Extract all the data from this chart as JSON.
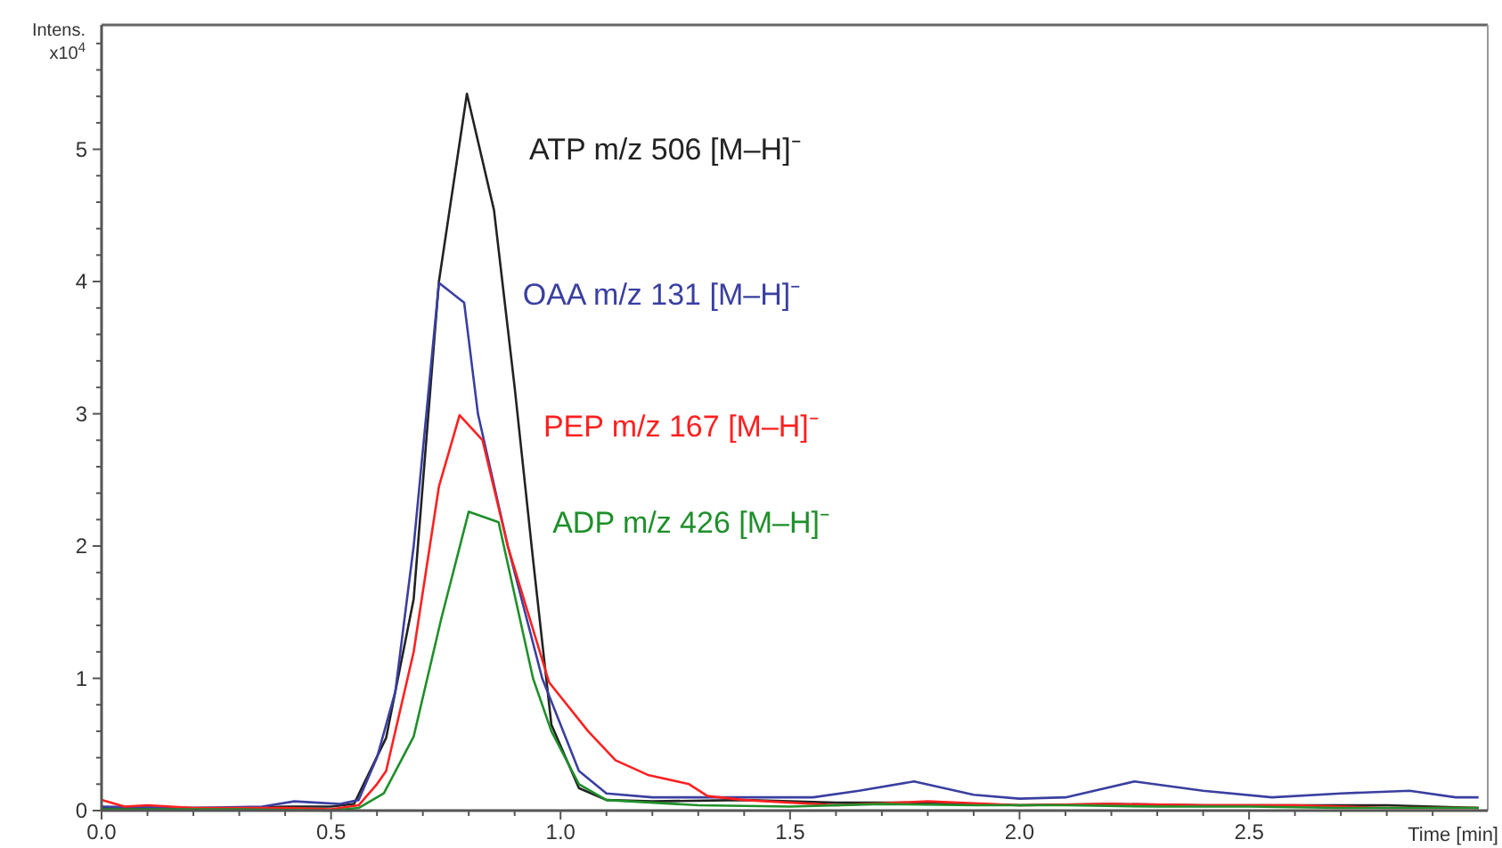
{
  "chart_data": {
    "type": "line",
    "xlabel": "Time [min]",
    "ylabel": "Intens. x10$^{4}$",
    "xlim": [
      0,
      3.02
    ],
    "ylim": [
      0,
      5.94
    ],
    "xticks": [
      {
        "value": 0,
        "label": "0.0"
      },
      {
        "value": 0.1,
        "label": null
      },
      {
        "value": 0.2,
        "label": null
      },
      {
        "value": 0.3,
        "label": null
      },
      {
        "value": 0.4,
        "label": null
      },
      {
        "value": 0.5,
        "label": "0.5"
      },
      {
        "value": 0.6,
        "label": null
      },
      {
        "value": 0.7,
        "label": null
      },
      {
        "value": 0.8,
        "label": null
      },
      {
        "value": 0.9,
        "label": null
      },
      {
        "value": 1,
        "label": "1.0"
      },
      {
        "value": 1.1,
        "label": null
      },
      {
        "value": 1.2,
        "label": null
      },
      {
        "value": 1.3,
        "label": null
      },
      {
        "value": 1.4,
        "label": null
      },
      {
        "value": 1.5,
        "label": "1.5"
      },
      {
        "value": 1.6,
        "label": null
      },
      {
        "value": 1.7,
        "label": null
      },
      {
        "value": 1.8,
        "label": null
      },
      {
        "value": 1.9,
        "label": null
      },
      {
        "value": 2,
        "label": "2.0"
      },
      {
        "value": 2.1,
        "label": null
      },
      {
        "value": 2.2,
        "label": null
      },
      {
        "value": 2.3,
        "label": null
      },
      {
        "value": 2.4,
        "label": null
      },
      {
        "value": 2.5,
        "label": "2.5"
      },
      {
        "value": 2.6,
        "label": null
      },
      {
        "value": 2.7,
        "label": null
      },
      {
        "value": 2.8,
        "label": null
      },
      {
        "value": 2.9,
        "label": null
      }
    ],
    "yticks": [
      0,
      {
        "value": 0.2,
        "label": null
      },
      {
        "value": 0.4,
        "label": null
      },
      {
        "value": 0.6,
        "label": null
      },
      {
        "value": 0.8,
        "label": null
      },
      1,
      {
        "value": 1.2,
        "label": null
      },
      {
        "value": 1.4,
        "label": null
      },
      {
        "value": 1.6,
        "label": null
      },
      {
        "value": 1.8,
        "label": null
      },
      2,
      {
        "value": 2.2,
        "label": null
      },
      {
        "value": 2.4,
        "label": null
      },
      {
        "value": 2.6,
        "label": null
      },
      {
        "value": 2.8,
        "label": null
      },
      3,
      {
        "value": 3.2,
        "label": null
      },
      {
        "value": 3.4,
        "label": null
      },
      {
        "value": 3.6,
        "label": null
      },
      {
        "value": 3.8,
        "label": null
      },
      4,
      {
        "value": 4.2,
        "label": null
      },
      {
        "value": 4.4,
        "label": null
      },
      {
        "value": 4.6,
        "label": null
      },
      {
        "value": 4.8,
        "label": null
      },
      5,
      {
        "value": 5.2,
        "label": null
      },
      {
        "value": 5.4,
        "label": null
      },
      {
        "value": 5.6,
        "label": null
      },
      {
        "value": 5.8,
        "label": null
      }
    ],
    "grid": false,
    "marker": "none",
    "line_style": "solid",
    "series": [
      {
        "name": "ATP m/z 506 [M–H]⁻",
        "color": "#222222",
        "x": [
          0,
          0.1,
          0.2,
          0.3,
          0.4,
          0.5,
          0.55,
          0.62,
          0.68,
          0.735,
          0.796,
          0.855,
          0.9,
          0.94,
          0.98,
          1.04,
          1.1,
          1.2,
          1.4,
          1.6,
          1.8,
          2.0,
          2.2,
          2.4,
          2.6,
          2.8,
          3.0
        ],
        "values": [
          0.02,
          0.02,
          0.02,
          0.02,
          0.03,
          0.03,
          0.05,
          0.55,
          1.6,
          4.0,
          5.42,
          4.54,
          3.2,
          1.9,
          0.65,
          0.17,
          0.08,
          0.07,
          0.08,
          0.06,
          0.06,
          0.04,
          0.05,
          0.04,
          0.04,
          0.04,
          0.02
        ]
      },
      {
        "name": "OAA m/z 131 [M–H]⁻",
        "color": "#3a3fa0",
        "x": [
          0,
          0.2,
          0.35,
          0.42,
          0.47,
          0.52,
          0.56,
          0.6,
          0.64,
          0.68,
          0.735,
          0.79,
          0.82,
          0.885,
          0.96,
          1.04,
          1.1,
          1.2,
          1.4,
          1.55,
          1.65,
          1.77,
          1.9,
          2.0,
          2.1,
          2.25,
          2.4,
          2.55,
          2.7,
          2.85,
          2.95,
          3.0
        ],
        "values": [
          0.03,
          0.02,
          0.03,
          0.07,
          0.06,
          0.05,
          0.08,
          0.4,
          0.9,
          2.0,
          3.99,
          3.84,
          3.0,
          2.0,
          1.0,
          0.3,
          0.13,
          0.1,
          0.1,
          0.1,
          0.15,
          0.22,
          0.12,
          0.09,
          0.1,
          0.22,
          0.15,
          0.1,
          0.13,
          0.15,
          0.1,
          0.1
        ]
      },
      {
        "name": "PEP m/z 167 [M–H]⁻",
        "color": "#ff2020",
        "x": [
          0,
          0.05,
          0.1,
          0.2,
          0.4,
          0.5,
          0.56,
          0.6,
          0.62,
          0.68,
          0.735,
          0.78,
          0.83,
          0.885,
          0.975,
          1.06,
          1.12,
          1.19,
          1.28,
          1.32,
          1.4,
          1.6,
          1.8,
          2.0,
          2.2,
          2.4,
          2.6,
          2.8,
          3.0
        ],
        "values": [
          0.08,
          0.03,
          0.04,
          0.02,
          0.02,
          0.01,
          0.04,
          0.2,
          0.3,
          1.2,
          2.45,
          2.99,
          2.8,
          2.0,
          0.97,
          0.6,
          0.38,
          0.27,
          0.2,
          0.11,
          0.08,
          0.04,
          0.07,
          0.04,
          0.05,
          0.04,
          0.04,
          0.02,
          0.02
        ]
      },
      {
        "name": "ADP m/z 426 [M–H]⁻",
        "color": "#1f8f2a",
        "x": [
          0,
          0.3,
          0.5,
          0.56,
          0.615,
          0.68,
          0.74,
          0.8,
          0.865,
          0.94,
          0.98,
          1.04,
          1.1,
          1.3,
          1.5,
          1.7,
          1.9,
          2.1,
          2.3,
          2.5,
          2.7,
          2.9,
          3.0
        ],
        "values": [
          0.01,
          0.01,
          0.0,
          0.02,
          0.13,
          0.56,
          1.45,
          2.26,
          2.18,
          1.0,
          0.6,
          0.2,
          0.08,
          0.04,
          0.03,
          0.05,
          0.04,
          0.04,
          0.03,
          0.03,
          0.02,
          0.02,
          0.02
        ]
      }
    ]
  }
}
